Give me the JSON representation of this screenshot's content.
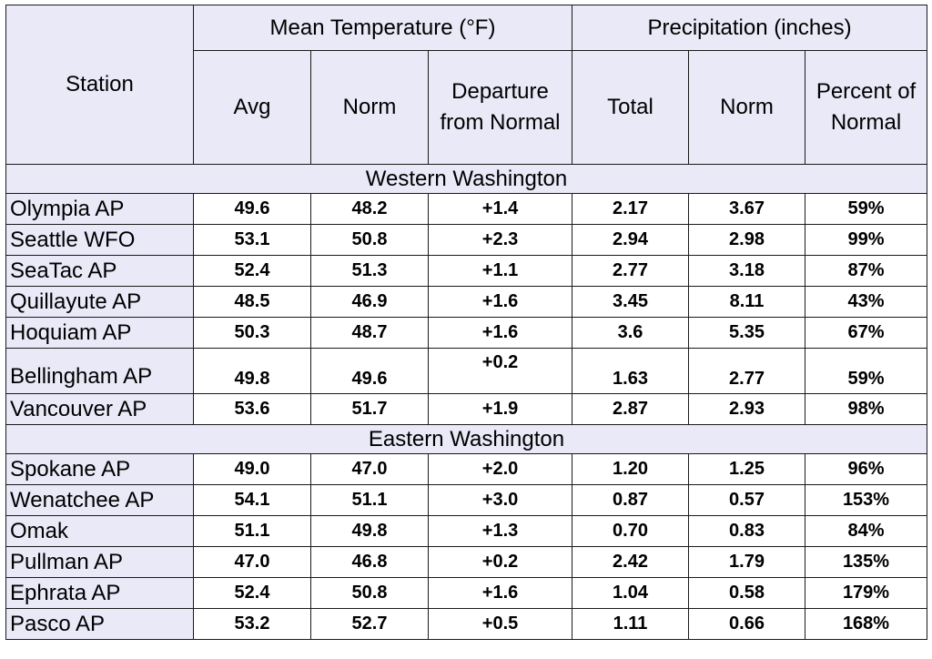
{
  "header": {
    "station": "Station",
    "mean_temp_group": "Mean Temperature (°F)",
    "precip_group": "Precipitation (inches)",
    "columns": [
      "Avg",
      "Norm",
      "Departure from Normal",
      "Total",
      "Norm",
      "Percent of Normal"
    ]
  },
  "sections": [
    {
      "title": "Western Washington",
      "rows": [
        {
          "station": "Olympia AP",
          "avg": "49.6",
          "norm": "48.2",
          "departure": "+1.4",
          "total": "2.17",
          "pnorm": "3.67",
          "percent": "59%"
        },
        {
          "station": "Seattle WFO",
          "avg": "53.1",
          "norm": "50.8",
          "departure": "+2.3",
          "total": "2.94",
          "pnorm": "2.98",
          "percent": "99%"
        },
        {
          "station": "SeaTac AP",
          "avg": "52.4",
          "norm": "51.3",
          "departure": "+1.1",
          "total": "2.77",
          "pnorm": "3.18",
          "percent": "87%"
        },
        {
          "station": "Quillayute AP",
          "avg": "48.5",
          "norm": "46.9",
          "departure": "+1.6",
          "total": "3.45",
          "pnorm": "8.11",
          "percent": "43%"
        },
        {
          "station": "Hoquiam AP",
          "avg": "50.3",
          "norm": "48.7",
          "departure": "+1.6",
          "total": "3.6",
          "pnorm": "5.35",
          "percent": "67%"
        },
        {
          "station": "Bellingham AP",
          "avg": "49.8",
          "norm": "49.6",
          "departure": "+0.2",
          "total": "1.63",
          "pnorm": "2.77",
          "percent": "59%"
        },
        {
          "station": "Vancouver AP",
          "avg": "53.6",
          "norm": "51.7",
          "departure": "+1.9",
          "total": "2.87",
          "pnorm": "2.93",
          "percent": "98%"
        }
      ]
    },
    {
      "title": "Eastern Washington",
      "rows": [
        {
          "station": "Spokane AP",
          "avg": "49.0",
          "norm": "47.0",
          "departure": "+2.0",
          "total": "1.20",
          "pnorm": "1.25",
          "percent": "96%"
        },
        {
          "station": "Wenatchee AP",
          "avg": "54.1",
          "norm": "51.1",
          "departure": "+3.0",
          "total": "0.87",
          "pnorm": "0.57",
          "percent": "153%"
        },
        {
          "station": "Omak",
          "avg": "51.1",
          "norm": "49.8",
          "departure": "+1.3",
          "total": "0.70",
          "pnorm": "0.83",
          "percent": "84%"
        },
        {
          "station": "Pullman AP",
          "avg": "47.0",
          "norm": "46.8",
          "departure": "+0.2",
          "total": "2.42",
          "pnorm": "1.79",
          "percent": "135%"
        },
        {
          "station": "Ephrata AP",
          "avg": "52.4",
          "norm": "50.8",
          "departure": "+1.6",
          "total": "1.04",
          "pnorm": "0.58",
          "percent": "179%"
        },
        {
          "station": "Pasco AP",
          "avg": "53.2",
          "norm": "52.7",
          "departure": "+0.5",
          "total": "1.11",
          "pnorm": "0.66",
          "percent": "168%"
        }
      ]
    }
  ]
}
